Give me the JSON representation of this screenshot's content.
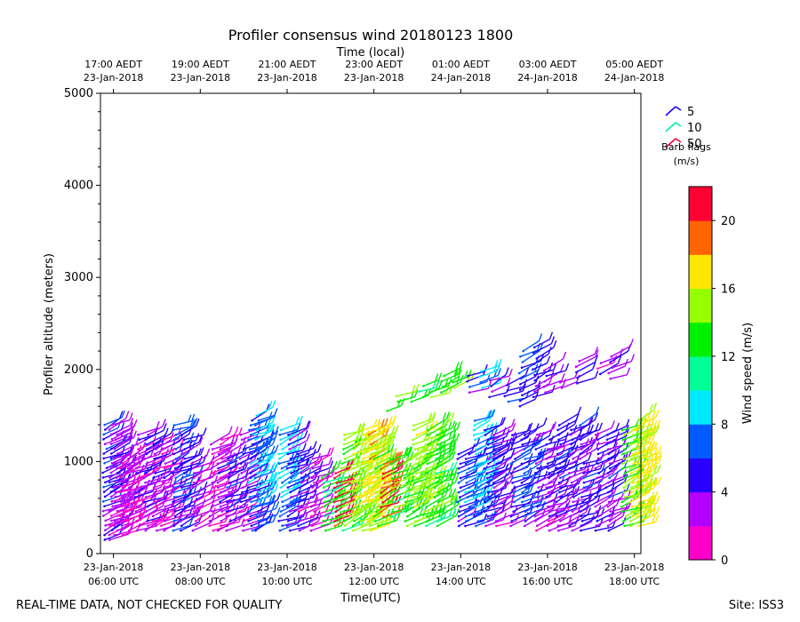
{
  "chart_data": {
    "type": "wind_barb_profile",
    "title": "Profiler consensus wind 20180123 1800",
    "xlabel": "Time(UTC)",
    "xlabel_top": "Time (local)",
    "ylabel": "Profiler altitude (meters)",
    "ylim": [
      0,
      5000
    ],
    "yticks": [
      0,
      1000,
      2000,
      3000,
      4000,
      5000
    ],
    "xlim_hours": [
      5.7,
      18.15
    ],
    "bottom_ticks": [
      {
        "hour": 6,
        "date": "23-Jan-2018",
        "time": "06:00 UTC"
      },
      {
        "hour": 8,
        "date": "23-Jan-2018",
        "time": "08:00 UTC"
      },
      {
        "hour": 10,
        "date": "23-Jan-2018",
        "time": "10:00 UTC"
      },
      {
        "hour": 12,
        "date": "23-Jan-2018",
        "time": "12:00 UTC"
      },
      {
        "hour": 14,
        "date": "23-Jan-2018",
        "time": "14:00 UTC"
      },
      {
        "hour": 16,
        "date": "23-Jan-2018",
        "time": "16:00 UTC"
      },
      {
        "hour": 18,
        "date": "23-Jan-2018",
        "time": "18:00 UTC"
      }
    ],
    "top_ticks": [
      {
        "hour": 6,
        "time": "17:00 AEDT",
        "date": "23-Jan-2018"
      },
      {
        "hour": 8,
        "time": "19:00 AEDT",
        "date": "23-Jan-2018"
      },
      {
        "hour": 10,
        "time": "21:00 AEDT",
        "date": "23-Jan-2018"
      },
      {
        "hour": 12,
        "time": "23:00 AEDT",
        "date": "23-Jan-2018"
      },
      {
        "hour": 14,
        "time": "01:00 AEDT",
        "date": "24-Jan-2018"
      },
      {
        "hour": 16,
        "time": "03:00 AEDT",
        "date": "24-Jan-2018"
      },
      {
        "hour": 18,
        "time": "05:00 AEDT",
        "date": "24-Jan-2018"
      }
    ],
    "legend": {
      "entries": [
        {
          "label": "5",
          "color": "#1a00ff"
        },
        {
          "label": "10",
          "color": "#00f0a0"
        },
        {
          "label": "50",
          "color": "#ff0040"
        }
      ],
      "title_line1": "Barb flags",
      "title_line2": "(m/s)"
    },
    "colorbar": {
      "label": "Wind speed (m/s)",
      "min": 0,
      "max": 22,
      "ticks": [
        0,
        4,
        8,
        12,
        16,
        20
      ],
      "colors": [
        "#ff00c8",
        "#b400ff",
        "#2800ff",
        "#005aff",
        "#00e8ff",
        "#00ff96",
        "#00f000",
        "#96ff00",
        "#ffe600",
        "#ff6400",
        "#ff0032"
      ]
    },
    "profiles": [
      {
        "hour": 5.8,
        "top": 1400,
        "base": 150,
        "speed": 5
      },
      {
        "hour": 5.95,
        "top": 1420,
        "base": 150,
        "speed": 4
      },
      {
        "hour": 6.05,
        "top": 1300,
        "base": 200,
        "speed": 3
      },
      {
        "hour": 6.2,
        "top": 1000,
        "base": 200,
        "speed": 2
      },
      {
        "hour": 6.35,
        "top": 1050,
        "base": 250,
        "speed": 3
      },
      {
        "hour": 6.55,
        "top": 1300,
        "base": 250,
        "speed": 3
      },
      {
        "hour": 6.75,
        "top": 1320,
        "base": 250,
        "speed": 4
      },
      {
        "hour": 6.95,
        "top": 1200,
        "base": 250,
        "speed": 3
      },
      {
        "hour": 7.15,
        "top": 1250,
        "base": 250,
        "speed": 3
      },
      {
        "hour": 7.4,
        "top": 1420,
        "base": 250,
        "speed": 6
      },
      {
        "hour": 7.6,
        "top": 1300,
        "base": 250,
        "speed": 5
      },
      {
        "hour": 7.85,
        "top": 1000,
        "base": 250,
        "speed": 3
      },
      {
        "hour": 8.25,
        "top": 1200,
        "base": 250,
        "speed": 3
      },
      {
        "hour": 8.45,
        "top": 1250,
        "base": 250,
        "speed": 3
      },
      {
        "hour": 8.65,
        "top": 1100,
        "base": 250,
        "speed": 5
      },
      {
        "hour": 8.95,
        "top": 1300,
        "base": 250,
        "speed": 4
      },
      {
        "hour": 9.15,
        "top": 1450,
        "base": 250,
        "speed": 7
      },
      {
        "hour": 9.3,
        "top": 1500,
        "base": 250,
        "speed": 8
      },
      {
        "hour": 9.85,
        "top": 1380,
        "base": 250,
        "speed": 8
      },
      {
        "hour": 10.05,
        "top": 1300,
        "base": 250,
        "speed": 5
      },
      {
        "hour": 10.3,
        "top": 1100,
        "base": 250,
        "speed": 4
      },
      {
        "hour": 10.6,
        "top": 1050,
        "base": 250,
        "speed": 3
      },
      {
        "hour": 10.85,
        "top": 850,
        "base": 250,
        "speed": 13
      },
      {
        "hour": 11.1,
        "top": 900,
        "base": 300,
        "speed": 21
      },
      {
        "hour": 11.3,
        "top": 1300,
        "base": 250,
        "speed": 14
      },
      {
        "hour": 11.55,
        "top": 1200,
        "base": 250,
        "speed": 15
      },
      {
        "hour": 11.75,
        "top": 1350,
        "base": 250,
        "speed": 16
      },
      {
        "hour": 11.9,
        "top": 1300,
        "base": 250,
        "speed": 17
      },
      {
        "hour": 12.05,
        "top": 1350,
        "base": 300,
        "speed": 15
      },
      {
        "hour": 12.2,
        "top": 1000,
        "base": 400,
        "speed": 20
      },
      {
        "hour": 12.45,
        "top": 1050,
        "base": 400,
        "speed": 13
      },
      {
        "hour": 12.75,
        "top": 1050,
        "base": 300,
        "speed": 14
      },
      {
        "hour": 12.95,
        "top": 1400,
        "base": 300,
        "speed": 15
      },
      {
        "hour": 13.2,
        "top": 1350,
        "base": 300,
        "speed": 14
      },
      {
        "hour": 13.45,
        "top": 1350,
        "base": 300,
        "speed": 13
      },
      {
        "hour": 13.95,
        "top": 1100,
        "base": 300,
        "speed": 6
      },
      {
        "hour": 14.15,
        "top": 1100,
        "base": 300,
        "speed": 7
      },
      {
        "hour": 14.35,
        "top": 1450,
        "base": 300,
        "speed": 8
      },
      {
        "hour": 14.6,
        "top": 1350,
        "base": 300,
        "speed": 5
      },
      {
        "hour": 14.8,
        "top": 1300,
        "base": 300,
        "speed": 4
      },
      {
        "hour": 15.2,
        "top": 1300,
        "base": 300,
        "speed": 5
      },
      {
        "hour": 15.45,
        "top": 1300,
        "base": 300,
        "speed": 6
      },
      {
        "hour": 15.75,
        "top": 1300,
        "base": 250,
        "speed": 4
      },
      {
        "hour": 16.0,
        "top": 1250,
        "base": 250,
        "speed": 4
      },
      {
        "hour": 16.25,
        "top": 1400,
        "base": 250,
        "speed": 5
      },
      {
        "hour": 16.55,
        "top": 1350,
        "base": 250,
        "speed": 4
      },
      {
        "hour": 16.8,
        "top": 1400,
        "base": 250,
        "speed": 5
      },
      {
        "hour": 17.15,
        "top": 1300,
        "base": 250,
        "speed": 4
      },
      {
        "hour": 17.4,
        "top": 1300,
        "base": 250,
        "speed": 5
      },
      {
        "hour": 17.75,
        "top": 1350,
        "base": 300,
        "speed": 14
      },
      {
        "hour": 17.95,
        "top": 1350,
        "base": 300,
        "speed": 16
      },
      {
        "hour": 18.1,
        "top": 1450,
        "base": 300,
        "speed": 17
      }
    ],
    "upper_layer": [
      {
        "hour": 12.3,
        "top": 1600,
        "base": 1550,
        "speed": 13
      },
      {
        "hour": 12.55,
        "top": 1750,
        "base": 1650,
        "speed": 13
      },
      {
        "hour": 12.85,
        "top": 1700,
        "base": 1650,
        "speed": 14
      },
      {
        "hour": 13.1,
        "top": 1850,
        "base": 1700,
        "speed": 13
      },
      {
        "hour": 13.35,
        "top": 1800,
        "base": 1700,
        "speed": 14
      },
      {
        "hour": 13.6,
        "top": 1950,
        "base": 1750,
        "speed": 13
      },
      {
        "hour": 13.8,
        "top": 1900,
        "base": 1800,
        "speed": 13
      },
      {
        "hour": 14.2,
        "top": 1950,
        "base": 1750,
        "speed": 5
      },
      {
        "hour": 14.45,
        "top": 2000,
        "base": 1800,
        "speed": 8
      },
      {
        "hour": 14.7,
        "top": 1900,
        "base": 1700,
        "speed": 4
      },
      {
        "hour": 15.05,
        "top": 1850,
        "base": 1650,
        "speed": 5
      },
      {
        "hour": 15.4,
        "top": 2200,
        "base": 1600,
        "speed": 6
      },
      {
        "hour": 15.7,
        "top": 2250,
        "base": 1700,
        "speed": 4
      },
      {
        "hour": 15.95,
        "top": 2000,
        "base": 1750,
        "speed": 4
      },
      {
        "hour": 16.3,
        "top": 1900,
        "base": 1800,
        "speed": 4
      },
      {
        "hour": 16.7,
        "top": 2100,
        "base": 1850,
        "speed": 4
      },
      {
        "hour": 17.2,
        "top": 2100,
        "base": 1950,
        "speed": 3
      },
      {
        "hour": 17.45,
        "top": 2150,
        "base": 1900,
        "speed": 4
      }
    ]
  },
  "footer": {
    "left": "REAL-TIME DATA, NOT CHECKED FOR QUALITY",
    "right": "Site: ISS3"
  }
}
